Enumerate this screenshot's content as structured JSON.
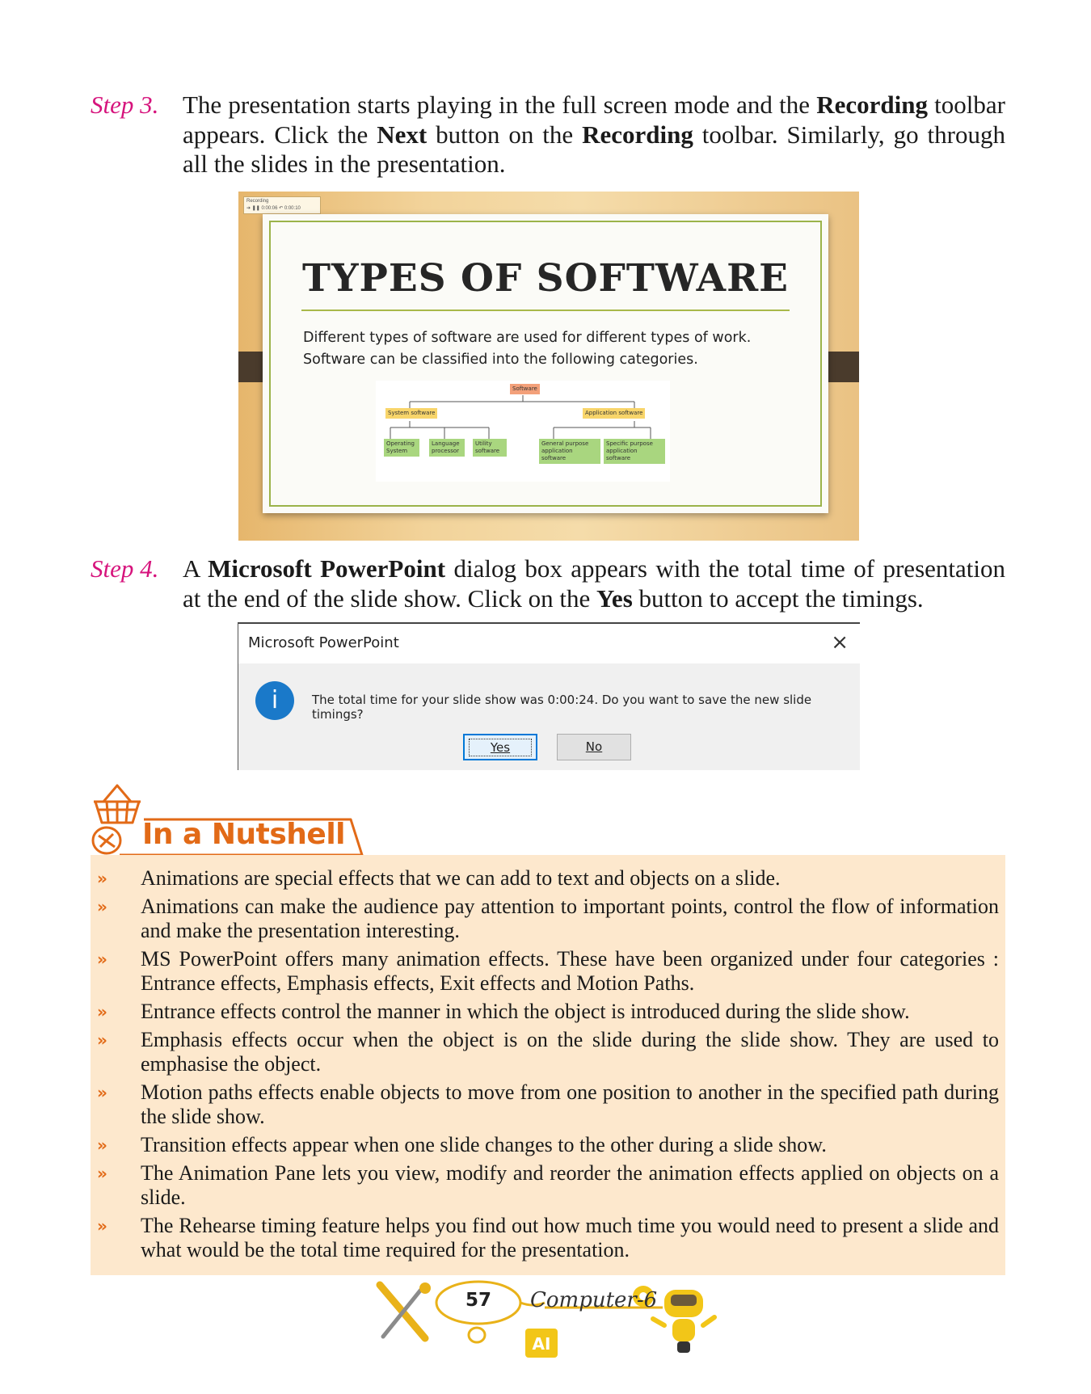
{
  "step3": {
    "label": "Step 3.",
    "t1": "The presentation starts playing in the full screen mode and the ",
    "b1": "Recording",
    "t2": " toolbar appears. Click the ",
    "b2": "Next",
    "t3": " button on the ",
    "b3": "Recording",
    "t4": " toolbar. Similarly, go through all the slides in the presentation."
  },
  "slide": {
    "toolbar_label": "Recording",
    "toolbar_time1": "0:00:06",
    "toolbar_time2": "0:00:10",
    "title": "TYPES OF SOFTWARE",
    "body_line1": "Different types of software are used for different types of work.",
    "body_line2": "Software can be classified into the following categories.",
    "tree": {
      "root": "Software",
      "system": "System software",
      "application": "Application software",
      "os": "Operating System",
      "lang": "Language processor",
      "util": "Utility software",
      "general": "General purpose application software",
      "specific": "Specific purpose application software"
    }
  },
  "step4": {
    "label": "Step 4.",
    "t1": "A ",
    "b1": "Microsoft PowerPoint",
    "t2": " dialog box appears with the total time of presentation at the end of the slide show. Click on the ",
    "b2": "Yes",
    "t3": " button to accept the timings."
  },
  "dialog": {
    "title": "Microsoft PowerPoint",
    "close": "×",
    "info_icon": "info-icon",
    "info_glyph": "i",
    "message": "The total time for your slide show was 0:00:24. Do you want to save the new slide timings?",
    "yes": "Yes",
    "no": "No",
    "accent": "#0078d7"
  },
  "nutshell": {
    "title": "In a Nutshell",
    "bullet": "»",
    "accent": "#e26a17",
    "background": "#fde8cd",
    "items": [
      "Animations are special effects that we can add to text and objects on a slide.",
      "Animations can make the audience pay attention to important points, control the flow of information and make the presentation interesting.",
      "MS PowerPoint offers many animation effects. These have been organized under four categories : Entrance effects, Emphasis effects, Exit effects and Motion Paths.",
      "Entrance effects control the manner in which the object is introduced during the slide show.",
      "Emphasis effects occur when the object is on the slide during the slide show. They are used to emphasise the object.",
      "Motion paths effects enable objects to move from one position to another in the specified path during the slide show.",
      "Transition effects appear when one slide changes to the other during a slide show.",
      "The Animation Pane lets you view, modify and reorder the animation effects applied on objects on a slide.",
      "The Rehearse timing feature helps you find out how much time you would need to present a slide and what would be the total time required for the presentation."
    ]
  },
  "footer": {
    "page_number": "57",
    "book": "Computer-6",
    "ai_badge": "AI"
  }
}
